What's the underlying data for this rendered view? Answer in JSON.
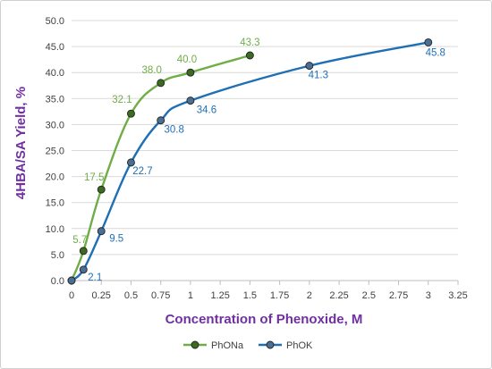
{
  "chart_data": {
    "type": "line",
    "xlabel": "Concentration of Phenoxide, M",
    "ylabel": "4HBA/SA Yield, %",
    "xlim": [
      0,
      3.25
    ],
    "ylim": [
      0,
      50
    ],
    "x_ticks": [
      0,
      0.25,
      0.5,
      0.75,
      1,
      1.25,
      1.5,
      1.75,
      2,
      2.25,
      2.5,
      2.75,
      3,
      3.25
    ],
    "x_tick_labels": [
      "0",
      "0.25",
      "0.5",
      "0.75",
      "1",
      "1.25",
      "1.5",
      "1.75",
      "2",
      "2.25",
      "2.5",
      "2.75",
      "3",
      "3.25"
    ],
    "y_ticks": [
      0,
      5,
      10,
      15,
      20,
      25,
      30,
      35,
      40,
      45,
      50
    ],
    "y_tick_labels": [
      "0.0",
      "5.0",
      "10.0",
      "15.0",
      "20.0",
      "25.0",
      "30.0",
      "35.0",
      "40.0",
      "45.0",
      "50.0"
    ],
    "grid": "horizontal",
    "legend": "bottom",
    "series": [
      {
        "name": "PhONa",
        "color": "#70ad47",
        "marker": "#3b6b20",
        "x": [
          0,
          0.1,
          0.25,
          0.5,
          0.75,
          1,
          1.5
        ],
        "y": [
          0,
          5.7,
          17.5,
          32.1,
          38.0,
          40.0,
          43.3
        ],
        "labels": [
          "",
          "5.7",
          "17.5",
          "32.1",
          "38.0",
          "40.0",
          "43.3"
        ]
      },
      {
        "name": "PhOK",
        "color": "#1f6fb5",
        "marker": "#4a6f95",
        "x": [
          0,
          0.1,
          0.25,
          0.5,
          0.75,
          1,
          2,
          3
        ],
        "y": [
          0,
          2.1,
          9.5,
          22.7,
          30.8,
          34.6,
          41.3,
          45.8
        ],
        "labels": [
          "",
          "2.1",
          "9.5",
          "22.7",
          "30.8",
          "34.6",
          "41.3",
          "45.8"
        ]
      }
    ]
  }
}
